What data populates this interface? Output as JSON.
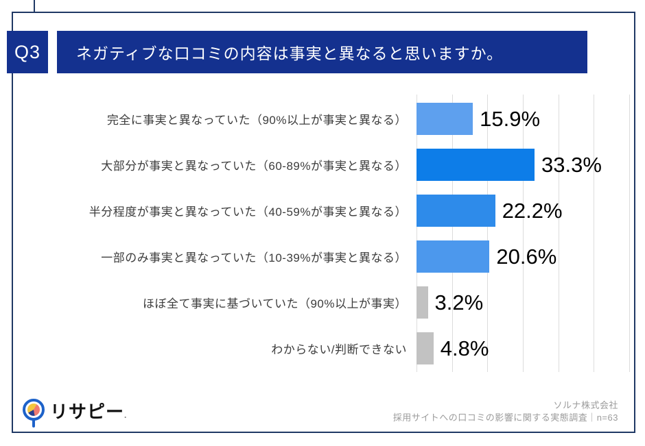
{
  "question": {
    "number": "Q3",
    "text": "ネガティブな口コミの内容は事実と異なると思いますか。"
  },
  "chart_data": {
    "type": "bar",
    "orientation": "horizontal",
    "title": "",
    "categories": [
      "完全に事実と異なっていた（90%以上が事実と異なる）",
      "大部分が事実と異なっていた（60-89%が事実と異なる）",
      "半分程度が事実と異なっていた（40-59%が事実と異なる）",
      "一部のみ事実と異なっていた（10-39%が事実と異なる）",
      "ほぼ全て事実に基づいていた（90%以上が事実）",
      "わからない/判断できない"
    ],
    "values": [
      15.9,
      33.3,
      22.2,
      20.6,
      3.2,
      4.8
    ],
    "value_labels": [
      "15.9%",
      "33.3%",
      "22.2%",
      "20.6%",
      "3.2%",
      "4.8%"
    ],
    "bar_colors": [
      "#5EA0EE",
      "#0D7DE8",
      "#2E8BEA",
      "#4C98ED",
      "#C2C2C2",
      "#C2C2C2"
    ],
    "xlim": [
      0,
      60
    ],
    "gridline_interval": 10,
    "grid": true,
    "legend": "none"
  },
  "footer": {
    "logo_text": "リサピー",
    "logo_mark": ".",
    "source_line1": "ソルナ株式会社",
    "source_line2": "採用サイトへの口コミの影響に関する実態調査｜n=63"
  },
  "colors": {
    "accent_navy": "#14318F",
    "frame_navy": "#1F3864",
    "gridline": "#DCDCDC",
    "text_dark": "#3C3C3C",
    "source_gray": "#9B9B9B"
  }
}
